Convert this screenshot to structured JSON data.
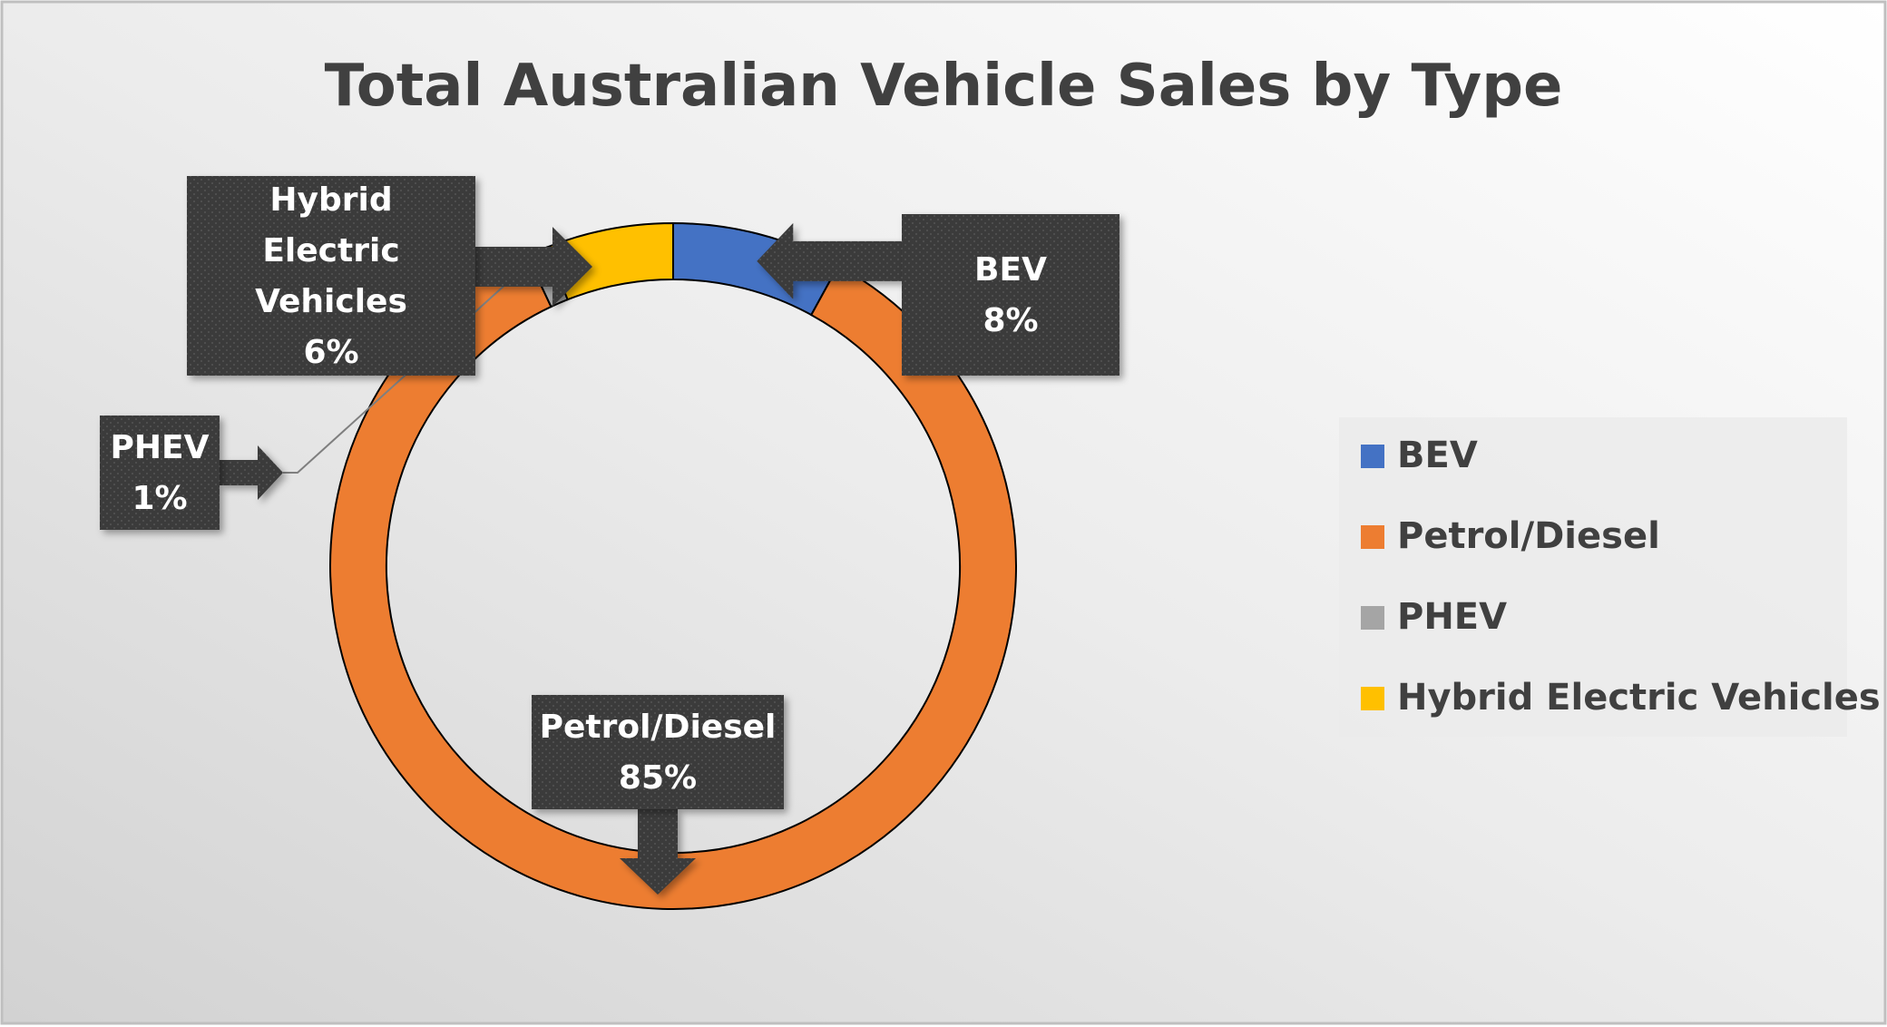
{
  "chart_data": {
    "type": "pie",
    "subtype": "doughnut",
    "title": "Total Australian Vehicle Sales by Type",
    "categories": [
      "BEV",
      "Petrol/Diesel",
      "PHEV",
      "Hybrid Electric Vehicles"
    ],
    "values": [
      8,
      85,
      1,
      6
    ],
    "value_labels": [
      "8%",
      "85%",
      "1%",
      "6%"
    ],
    "unit": "%",
    "colors": [
      "#4472C4",
      "#ED7D31",
      "#A5A5A5",
      "#FFC000"
    ],
    "legend_position": "right",
    "data_label_style": "dark callout boxes with arrows"
  }
}
